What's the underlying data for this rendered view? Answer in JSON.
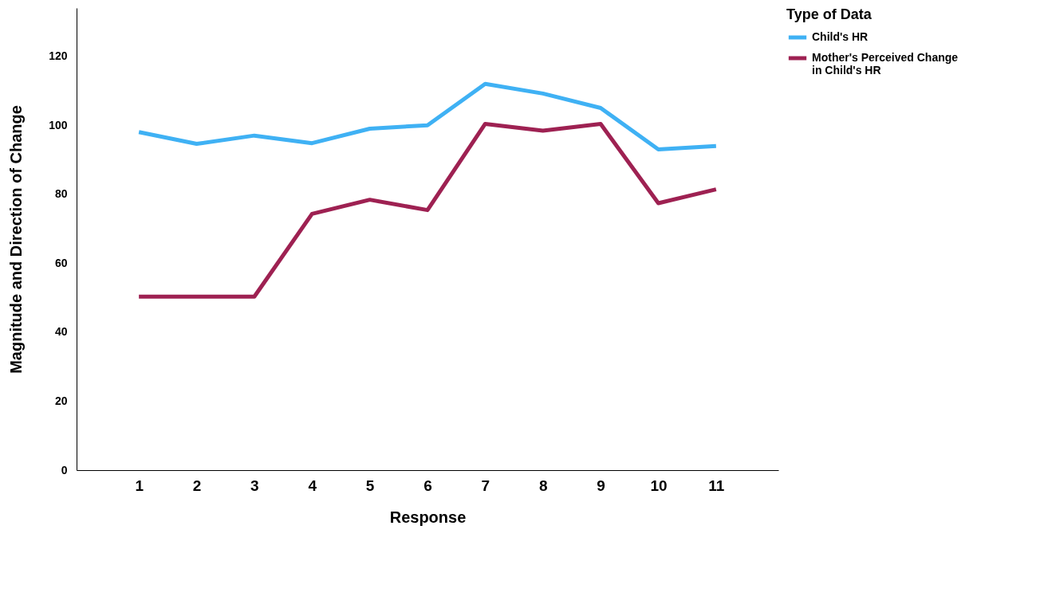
{
  "chart_data": {
    "type": "line",
    "xlabel": "Response",
    "ylabel": "Magnitude and Direction of Change",
    "legend_title": "Type of Data",
    "categories": [
      "1",
      "2",
      "3",
      "4",
      "5",
      "6",
      "7",
      "8",
      "9",
      "10",
      "11"
    ],
    "series": [
      {
        "name": "Child's HR",
        "color": "#3fb1f4",
        "values": [
          98,
          94.6,
          97,
          94.8,
          99,
          100,
          112,
          109.2,
          105,
          93,
          94
        ]
      },
      {
        "name": "Mother's Perceived Change in Child's HR",
        "color": "#9e2152",
        "values": [
          50.3,
          50.3,
          50.3,
          74.3,
          78.4,
          75.4,
          100.4,
          98.4,
          100.4,
          77.4,
          81.4
        ]
      }
    ],
    "ylim": [
      0,
      134
    ],
    "yticks": [
      0,
      20,
      40,
      60,
      80,
      100,
      120
    ],
    "grid": false,
    "legend": "top right",
    "marker": "none",
    "line_style": "solid"
  }
}
